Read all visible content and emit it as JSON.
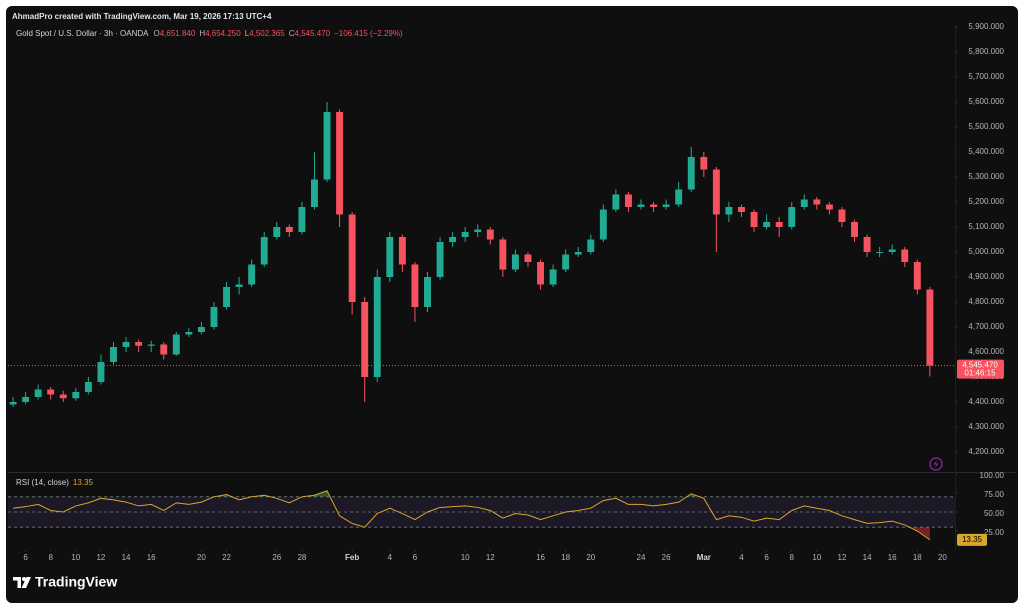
{
  "header": {
    "attribution": "AhmadPro created with TradingView.com, Mar 19, 2026 17:13 UTC+4"
  },
  "chart_data": [
    {
      "type": "candlestick",
      "title": "Gold Spot / U.S. Dollar · 3h · OANDA",
      "ohlc_legend": {
        "labels": [
          "O",
          "H",
          "L",
          "C"
        ],
        "values": [
          "4,651.840",
          "4,654.250",
          "4,502.365",
          "4,545.470"
        ],
        "change": "−106.415 (−2.29%)"
      },
      "x": [
        5,
        6,
        7,
        8,
        9,
        10,
        11,
        12,
        13,
        14,
        15,
        16,
        17,
        18,
        19,
        20,
        21,
        22,
        23,
        24,
        25,
        26,
        27,
        28,
        29,
        30,
        31,
        32,
        33,
        34,
        35,
        36,
        37,
        38,
        39,
        40,
        41,
        42,
        43,
        44,
        45,
        46,
        47,
        48,
        49,
        50,
        51,
        52,
        53,
        54,
        55,
        56,
        57,
        58,
        59,
        60,
        61,
        62,
        63,
        64,
        65,
        66,
        67,
        68,
        69,
        70,
        71,
        72,
        73,
        74,
        75,
        76,
        77,
        78
      ],
      "open": [
        4390,
        4400,
        4420,
        4450,
        4430,
        4415,
        4440,
        4480,
        4560,
        4620,
        4640,
        4625,
        4630,
        4590,
        4670,
        4680,
        4700,
        4780,
        4860,
        4870,
        4950,
        5060,
        5100,
        5080,
        5180,
        5290,
        5560,
        5150,
        4800,
        4500,
        4900,
        5060,
        4950,
        4780,
        4900,
        5040,
        5060,
        5080,
        5090,
        5050,
        4930,
        4990,
        4960,
        4870,
        4930,
        4990,
        5000,
        5050,
        5170,
        5230,
        5180,
        5190,
        5180,
        5190,
        5250,
        5380,
        5330,
        5150,
        5180,
        5160,
        5100,
        5120,
        5100,
        5180,
        5210,
        5190,
        5170,
        5120,
        5060,
        5000,
        5000,
        5010,
        4960,
        4850
      ],
      "high": [
        4420,
        4440,
        4470,
        4460,
        4445,
        4455,
        4500,
        4590,
        4640,
        4660,
        4650,
        4645,
        4640,
        4680,
        4695,
        4720,
        4800,
        4880,
        4900,
        4970,
        5080,
        5120,
        5110,
        5200,
        5400,
        5600,
        5570,
        5160,
        4820,
        4930,
        5080,
        5070,
        4960,
        4920,
        5060,
        5080,
        5100,
        5110,
        5100,
        5060,
        5010,
        5000,
        4970,
        4950,
        5010,
        5020,
        5070,
        5190,
        5250,
        5240,
        5210,
        5200,
        5210,
        5280,
        5420,
        5400,
        5340,
        5200,
        5190,
        5170,
        5150,
        5140,
        5200,
        5230,
        5220,
        5200,
        5180,
        5130,
        5070,
        5020,
        5030,
        5020,
        4970,
        4860
      ],
      "low": [
        4380,
        4390,
        4410,
        4410,
        4400,
        4405,
        4430,
        4470,
        4550,
        4600,
        4600,
        4600,
        4570,
        4585,
        4660,
        4670,
        4690,
        4770,
        4830,
        4860,
        4940,
        5050,
        5060,
        5070,
        5170,
        5280,
        5100,
        4750,
        4400,
        4480,
        4880,
        4920,
        4720,
        4760,
        4890,
        5020,
        5040,
        5060,
        5030,
        4900,
        4920,
        4940,
        4850,
        4860,
        4920,
        4980,
        4990,
        5040,
        5160,
        5160,
        5170,
        5160,
        5170,
        5180,
        5240,
        5300,
        5000,
        5120,
        5140,
        5080,
        5090,
        5060,
        5090,
        5170,
        5170,
        5150,
        5100,
        5040,
        4980,
        4980,
        4990,
        4940,
        4830,
        4502.365
      ],
      "close": [
        4400,
        4420,
        4450,
        4430,
        4415,
        4440,
        4480,
        4560,
        4620,
        4640,
        4625,
        4630,
        4590,
        4670,
        4680,
        4700,
        4780,
        4860,
        4870,
        4950,
        5060,
        5100,
        5080,
        5180,
        5290,
        5560,
        5150,
        4800,
        4500,
        4900,
        5060,
        4950,
        4780,
        4900,
        5040,
        5060,
        5080,
        5090,
        5050,
        4930,
        4990,
        4960,
        4870,
        4930,
        4990,
        5000,
        5050,
        5170,
        5230,
        5180,
        5190,
        5180,
        5190,
        5250,
        5380,
        5330,
        5150,
        5180,
        5160,
        5100,
        5120,
        5100,
        5180,
        5210,
        5190,
        5170,
        5120,
        5060,
        5000,
        5000,
        5010,
        4960,
        4850,
        4545.47
      ],
      "up_color": "#22ab94",
      "down_color": "#f7525f",
      "last_price_label": "4,545.470",
      "countdown": "01:46:15",
      "xlim": [
        4.6,
        80
      ],
      "xticks": [
        6,
        8,
        10,
        12,
        14,
        16,
        20,
        22,
        26,
        28,
        {
          "value": 32,
          "label": "Feb"
        },
        {
          "value": 35,
          "label": "4"
        },
        {
          "value": 37,
          "label": "6"
        },
        {
          "value": 41,
          "label": "10"
        },
        {
          "value": 43,
          "label": "12"
        },
        {
          "value": 47,
          "label": "16"
        },
        {
          "value": 49,
          "label": "18"
        },
        {
          "value": 51,
          "label": "20"
        },
        {
          "value": 55,
          "label": "24"
        },
        {
          "value": 57,
          "label": "26"
        },
        {
          "value": 60,
          "label": "Mar"
        },
        {
          "value": 63,
          "label": "4"
        },
        {
          "value": 65,
          "label": "6"
        },
        {
          "value": 67,
          "label": "8"
        },
        {
          "value": 69,
          "label": "10"
        },
        {
          "value": 71,
          "label": "12"
        },
        {
          "value": 73,
          "label": "14"
        },
        {
          "value": 75,
          "label": "16"
        },
        {
          "value": 77,
          "label": "18"
        },
        {
          "value": 79,
          "label": "20"
        }
      ],
      "ylim": [
        4124,
        5908
      ],
      "yticks": [
        {
          "value": 4200,
          "label": "4,200.000"
        },
        {
          "value": 4300,
          "label": "4,300.000"
        },
        {
          "value": 4400,
          "label": "4,400.000"
        },
        {
          "value": 4500,
          "label": "4,500.000"
        },
        {
          "value": 4600,
          "label": "4,600.000"
        },
        {
          "value": 4700,
          "label": "4,700.000"
        },
        {
          "value": 4800,
          "label": "4,800.000"
        },
        {
          "value": 4900,
          "label": "4,900.000"
        },
        {
          "value": 5000,
          "label": "5,000.000"
        },
        {
          "value": 5100,
          "label": "5,100.000"
        },
        {
          "value": 5200,
          "label": "5,200.000"
        },
        {
          "value": 5300,
          "label": "5,300.000"
        },
        {
          "value": 5400,
          "label": "5,400.000"
        },
        {
          "value": 5500,
          "label": "5,500.000"
        },
        {
          "value": 5600,
          "label": "5,600.000"
        },
        {
          "value": 5700,
          "label": "5,700.000"
        },
        {
          "value": 5800,
          "label": "5,800.000"
        },
        {
          "value": 5900,
          "label": "5,900.000"
        }
      ],
      "grid": false
    },
    {
      "type": "line",
      "title": "RSI (14, close)",
      "x": [
        5,
        6,
        7,
        8,
        9,
        10,
        11,
        12,
        13,
        14,
        15,
        16,
        17,
        18,
        19,
        20,
        21,
        22,
        23,
        24,
        25,
        26,
        27,
        28,
        29,
        30,
        31,
        32,
        33,
        34,
        35,
        36,
        37,
        38,
        39,
        40,
        41,
        42,
        43,
        44,
        45,
        46,
        47,
        48,
        49,
        50,
        51,
        52,
        53,
        54,
        55,
        56,
        57,
        58,
        59,
        60,
        61,
        62,
        63,
        64,
        65,
        66,
        67,
        68,
        69,
        70,
        71,
        72,
        73,
        74,
        75,
        76,
        77,
        78
      ],
      "series": [
        {
          "name": "RSI",
          "color": "#d9a72b",
          "values": [
            55,
            57,
            60,
            52,
            50,
            58,
            62,
            68,
            66,
            63,
            58,
            60,
            52,
            62,
            60,
            63,
            70,
            73,
            66,
            70,
            72,
            68,
            62,
            70,
            72,
            78,
            45,
            35,
            30,
            48,
            55,
            48,
            40,
            50,
            56,
            57,
            58,
            56,
            52,
            42,
            48,
            46,
            40,
            45,
            50,
            52,
            55,
            65,
            68,
            60,
            60,
            58,
            60,
            63,
            74,
            68,
            40,
            45,
            43,
            38,
            42,
            40,
            52,
            58,
            55,
            52,
            45,
            40,
            35,
            36,
            38,
            33,
            25,
            13.35
          ]
        }
      ],
      "bands": [
        30,
        50,
        70
      ],
      "band_fill": "#7e57c2",
      "overbought_fill": "#4caf50",
      "oversold_fill": "#f23645",
      "xlim": [
        4.6,
        80
      ],
      "ylim": [
        0,
        100
      ],
      "yticks": [
        {
          "value": 100,
          "label": "100.00"
        },
        {
          "value": 75,
          "label": "75.00"
        },
        {
          "value": 50,
          "label": "50.00"
        },
        {
          "value": 25,
          "label": "25.00"
        }
      ]
    }
  ],
  "footer": {
    "brand": "TradingView"
  }
}
